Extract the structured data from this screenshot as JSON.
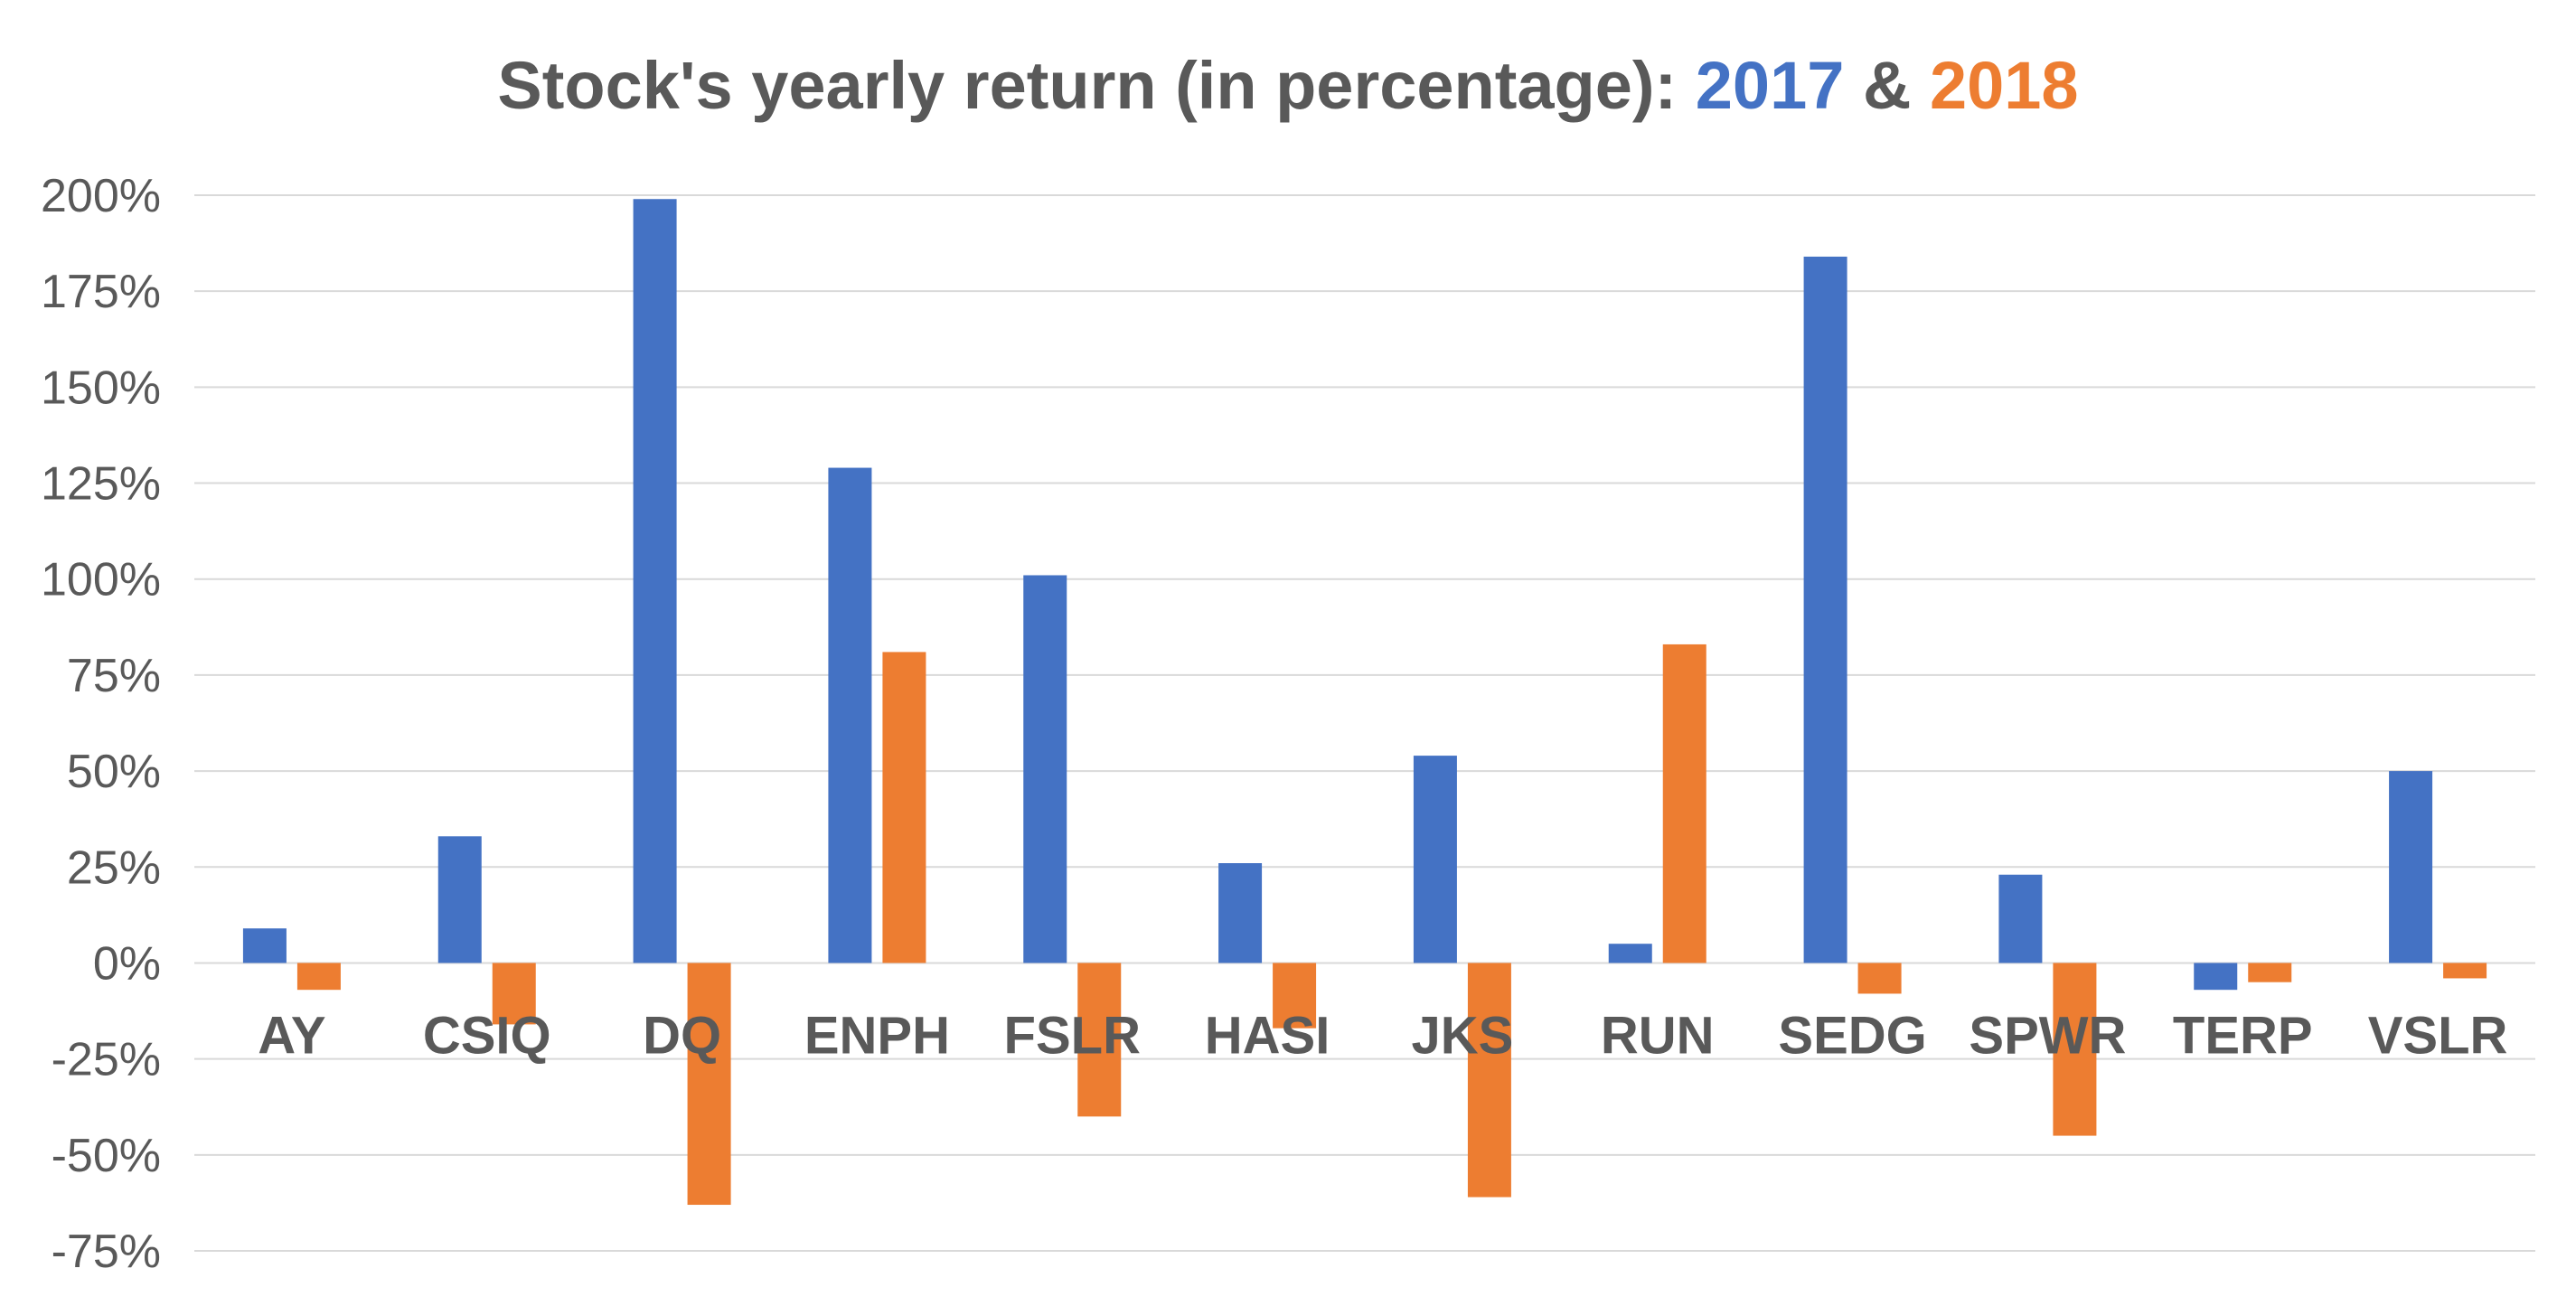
{
  "chart_data": {
    "type": "bar",
    "title": {
      "prefix": "Stock's yearly return (in percentage): ",
      "series1_label": "2017",
      "connector": " & ",
      "series2_label": "2018"
    },
    "categories": [
      "AY",
      "CSIQ",
      "DQ",
      "ENPH",
      "FSLR",
      "HASI",
      "JKS",
      "RUN",
      "SEDG",
      "SPWR",
      "TERP",
      "VSLR"
    ],
    "series": [
      {
        "name": "2017",
        "color": "#4472C4",
        "values": [
          9,
          33,
          199,
          129,
          101,
          26,
          54,
          5,
          184,
          23,
          -7,
          50
        ]
      },
      {
        "name": "2018",
        "color": "#ED7D31",
        "values": [
          -7,
          -16,
          -63,
          81,
          -40,
          -17,
          -61,
          83,
          -8,
          -45,
          -5,
          -4
        ]
      }
    ],
    "ylim": [
      -75,
      200
    ],
    "ytick_step": 25,
    "ytick_labels": [
      "200%",
      "175%",
      "150%",
      "125%",
      "100%",
      "75%",
      "50%",
      "25%",
      "0%",
      "-25%",
      "-50%",
      "-75%"
    ],
    "grid": true,
    "legend": "none",
    "xlabel": "",
    "ylabel": ""
  }
}
